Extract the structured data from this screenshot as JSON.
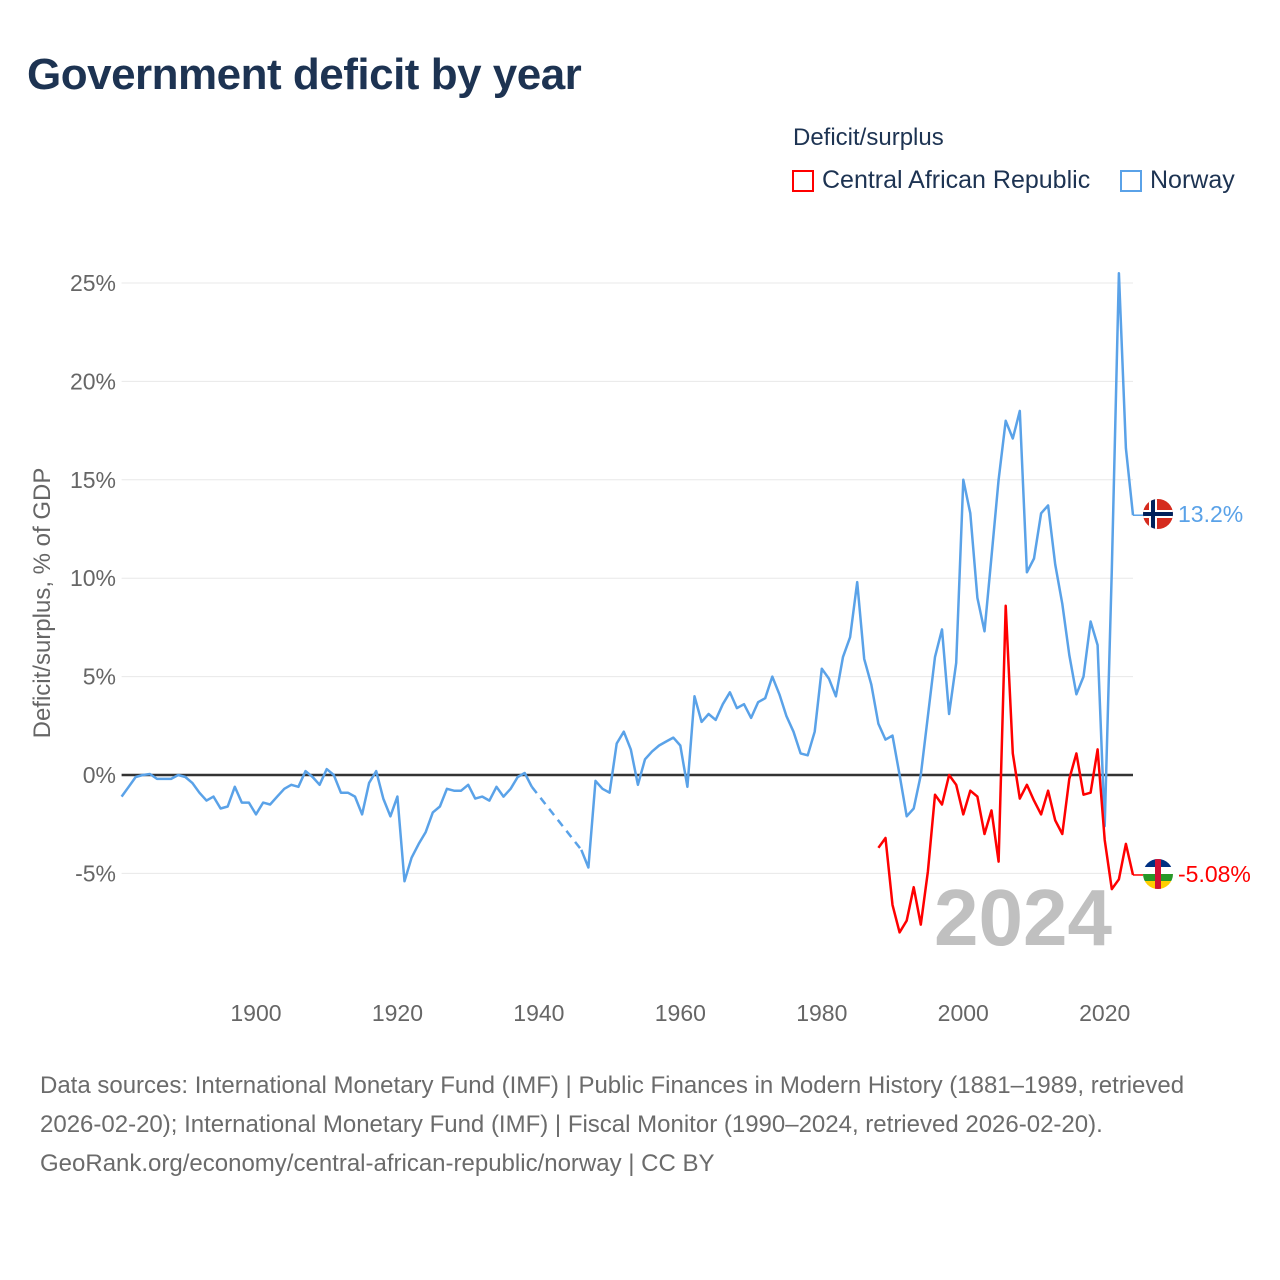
{
  "title": "Government deficit by year",
  "legend": {
    "title": "Deficit/surplus",
    "items": [
      {
        "label": "Central African Republic",
        "color": "#ff0000"
      },
      {
        "label": "Norway",
        "color": "#5aa2e8"
      }
    ]
  },
  "chart_data": {
    "type": "line",
    "title": "Government deficit by year",
    "xlabel": "",
    "ylabel": "Deficit/surplus, % of GDP",
    "xlim": [
      1881,
      2024
    ],
    "ylim": [
      -8.5,
      26
    ],
    "x_ticks": [
      1900,
      1920,
      1940,
      1960,
      1980,
      2000,
      2020
    ],
    "y_ticks": [
      -5,
      0,
      5,
      10,
      15,
      20,
      25
    ],
    "y_tick_labels": [
      "-5%",
      "0%",
      "5%",
      "10%",
      "15%",
      "20%",
      "25%"
    ],
    "grid": true,
    "year_overlay": "2024",
    "series": [
      {
        "name": "Norway",
        "color": "#5aa2e8",
        "start_year": 1881,
        "end_label": "13.2%",
        "values": [
          -1.1,
          -0.6,
          -0.1,
          0,
          0.05,
          -0.2,
          -0.2,
          -0.2,
          0,
          -0.1,
          -0.4,
          -0.9,
          -1.3,
          -1.1,
          -1.7,
          -1.6,
          -0.6,
          -1.4,
          -1.4,
          -2.0,
          -1.4,
          -1.5,
          -1.1,
          -0.7,
          -0.5,
          -0.6,
          0.2,
          -0.1,
          -0.5,
          0.3,
          0,
          -0.9,
          -0.9,
          -1.1,
          -2.0,
          -0.4,
          0.2,
          -1.2,
          -2.1,
          -1.1,
          -5.4,
          -4.2,
          -3.5,
          -2.9,
          -1.9,
          -1.6,
          -0.7,
          -0.8,
          -0.8,
          -0.5,
          -1.2,
          -1.1,
          -1.3,
          -0.6,
          -1.1,
          -0.7,
          -0.1,
          0.1,
          -0.6,
          null,
          null,
          null,
          null,
          null,
          null,
          -3.8,
          -4.7,
          -0.3,
          -0.7,
          -0.9,
          1.6,
          2.2,
          1.3,
          -0.5,
          0.8,
          1.2,
          1.5,
          1.7,
          1.9,
          1.5,
          -0.6,
          4.0,
          2.7,
          3.1,
          2.8,
          3.6,
          4.2,
          3.4,
          3.6,
          2.9,
          3.7,
          3.9,
          5.0,
          4.1,
          3.0,
          2.2,
          1.1,
          1.0,
          2.2,
          5.4,
          4.9,
          4.0,
          6.0,
          7.0,
          9.8,
          5.9,
          4.6,
          2.6,
          1.8,
          2.0,
          0,
          -2.1,
          -1.7,
          0,
          3.0,
          6.0,
          7.4,
          3.1,
          5.7,
          15.0,
          13.3,
          9.0,
          7.3,
          11.1,
          15.0,
          18.0,
          17.1,
          18.5,
          10.3,
          11.0,
          13.3,
          13.7,
          10.7,
          8.7,
          6.1,
          4.1,
          5.0,
          7.8,
          6.6,
          -2.6,
          10.4,
          25.5,
          16.6,
          13.2
        ]
      },
      {
        "name": "Central African Republic",
        "color": "#ff0000",
        "start_year": 1988,
        "end_label": "-5.08%",
        "values": [
          -3.7,
          -3.2,
          -6.6,
          -8.0,
          -7.4,
          -5.7,
          -7.6,
          -4.9,
          -1.0,
          -1.5,
          0,
          -0.5,
          -2.0,
          -0.8,
          -1.1,
          -3.0,
          -1.8,
          -4.4,
          8.6,
          1.1,
          -1.2,
          -0.5,
          -1.3,
          -2.0,
          -0.8,
          -2.3,
          -3.0,
          -0.2,
          1.1,
          -1.0,
          -0.9,
          1.3,
          -3.3,
          -5.8,
          -5.3,
          -3.5,
          -5.08
        ]
      }
    ]
  },
  "footer": {
    "sources": "Data sources: International Monetary Fund (IMF) | Public Finances in Modern History (1881–1989, retrieved 2026-02-20); International Monetary Fund (IMF) | Fiscal Monitor (1990–2024, retrieved 2026-02-20).",
    "credit": "GeoRank.org/economy/central-african-republic/norway | CC BY"
  }
}
